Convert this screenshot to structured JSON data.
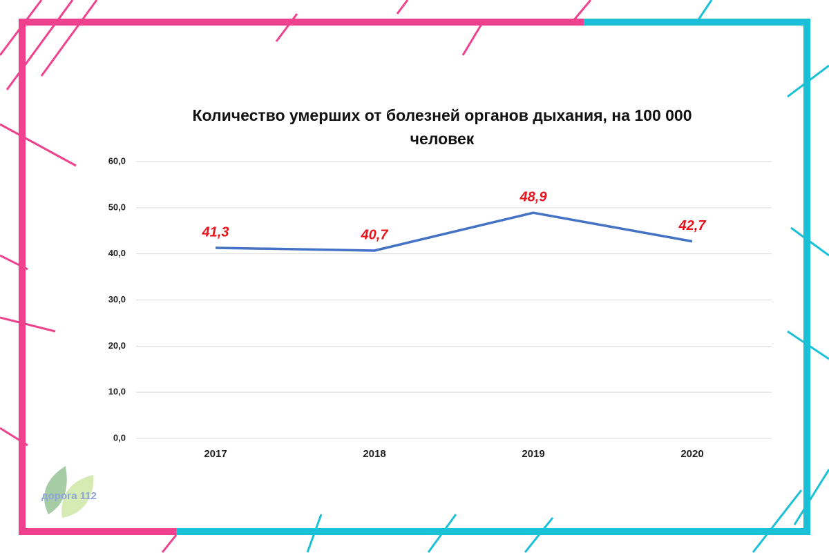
{
  "chart_data": {
    "type": "line",
    "title": "Количество умерших от болезней органов дыхания, на 100 000 человек",
    "categories": [
      "2017",
      "2018",
      "2019",
      "2020"
    ],
    "series": [
      {
        "color": "#4472c4",
        "values": [
          41.3,
          40.7,
          48.9,
          42.7
        ],
        "value_labels": [
          "41,3",
          "40,7",
          "48,9",
          "42,7"
        ]
      }
    ],
    "ylim": [
      0,
      60
    ],
    "yticks": [
      {
        "value": 0,
        "label": "0,0"
      },
      {
        "value": 10,
        "label": "10,0"
      },
      {
        "value": 20,
        "label": "20,0"
      },
      {
        "value": 30,
        "label": "30,0"
      },
      {
        "value": 40,
        "label": "40,0"
      },
      {
        "value": 50,
        "label": "50,0"
      },
      {
        "value": 60,
        "label": "60,0"
      }
    ],
    "grid": true
  },
  "logo": {
    "text": "дорога 112"
  }
}
